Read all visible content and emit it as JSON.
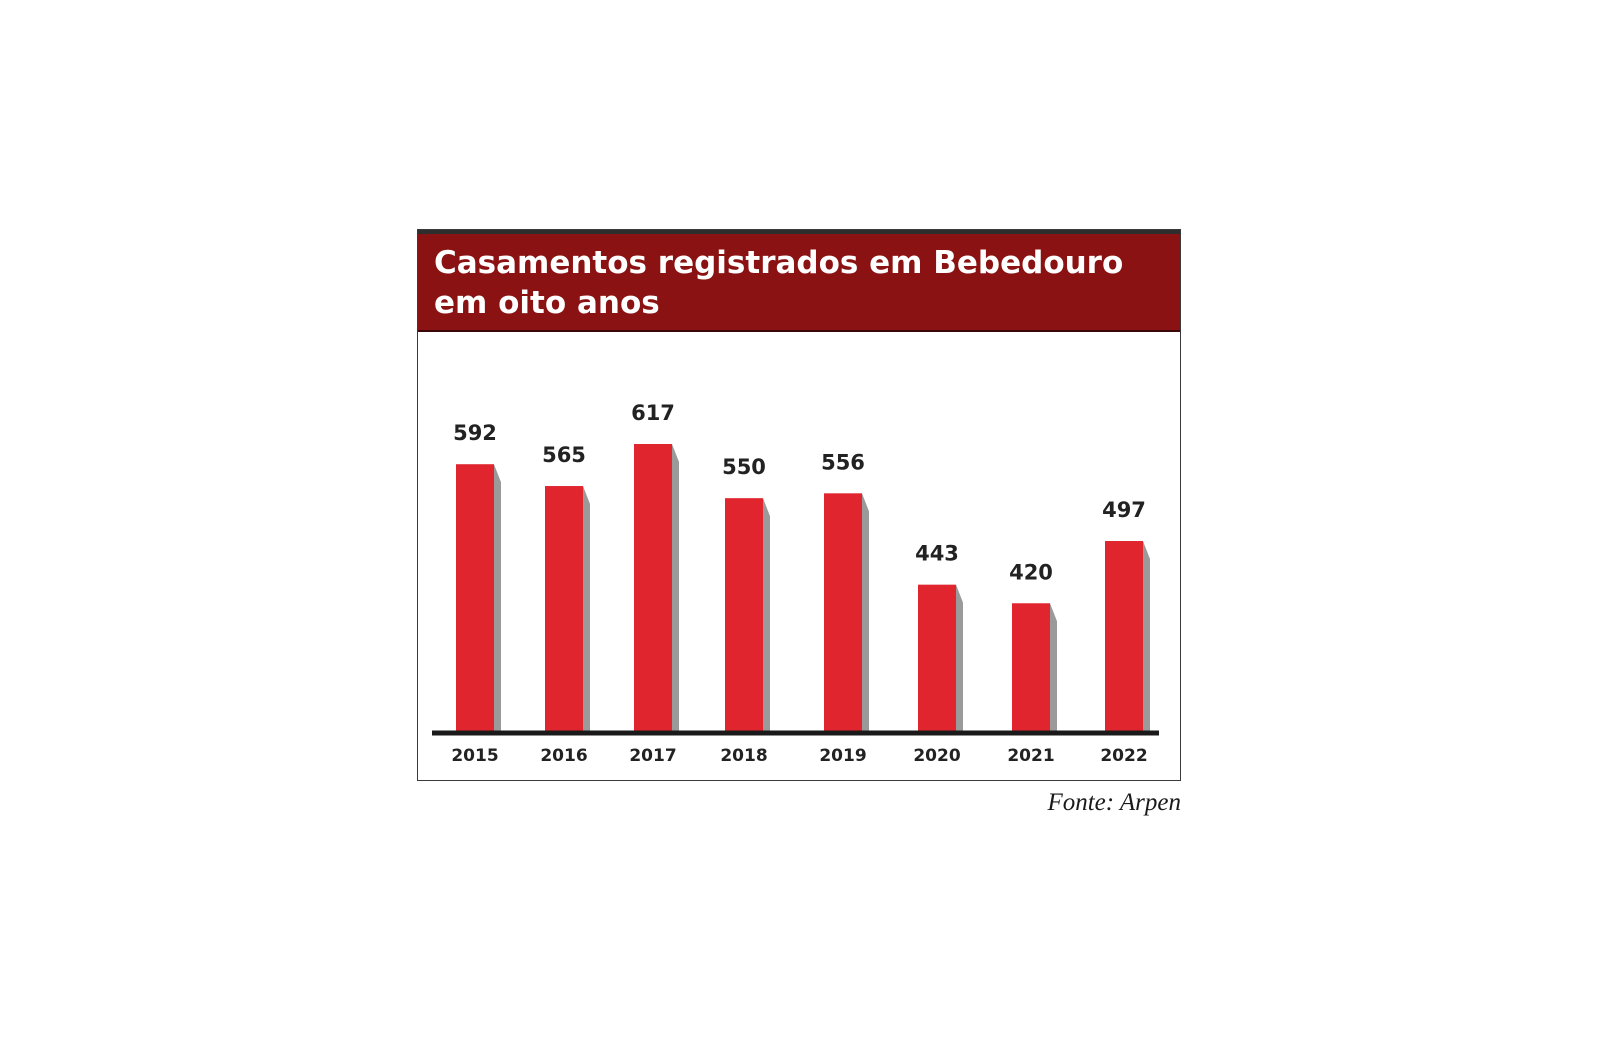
{
  "chart_data": {
    "type": "bar",
    "title": "Casamentos registrados em Bebedouro em oito anos",
    "categories": [
      "2015",
      "2016",
      "2017",
      "2018",
      "2019",
      "2020",
      "2021",
      "2022"
    ],
    "values": [
      592,
      565,
      617,
      550,
      556,
      443,
      420,
      497
    ],
    "xlabel": "",
    "ylabel": "",
    "ylim": [
      262,
      617
    ],
    "grid": false,
    "legend": "none",
    "bar_color": "#e0252e",
    "shadow_color": "#9a9a9a",
    "header_color": "#8b1212",
    "axis_color": "#1a1a1a"
  },
  "source": "Fonte: Arpen"
}
